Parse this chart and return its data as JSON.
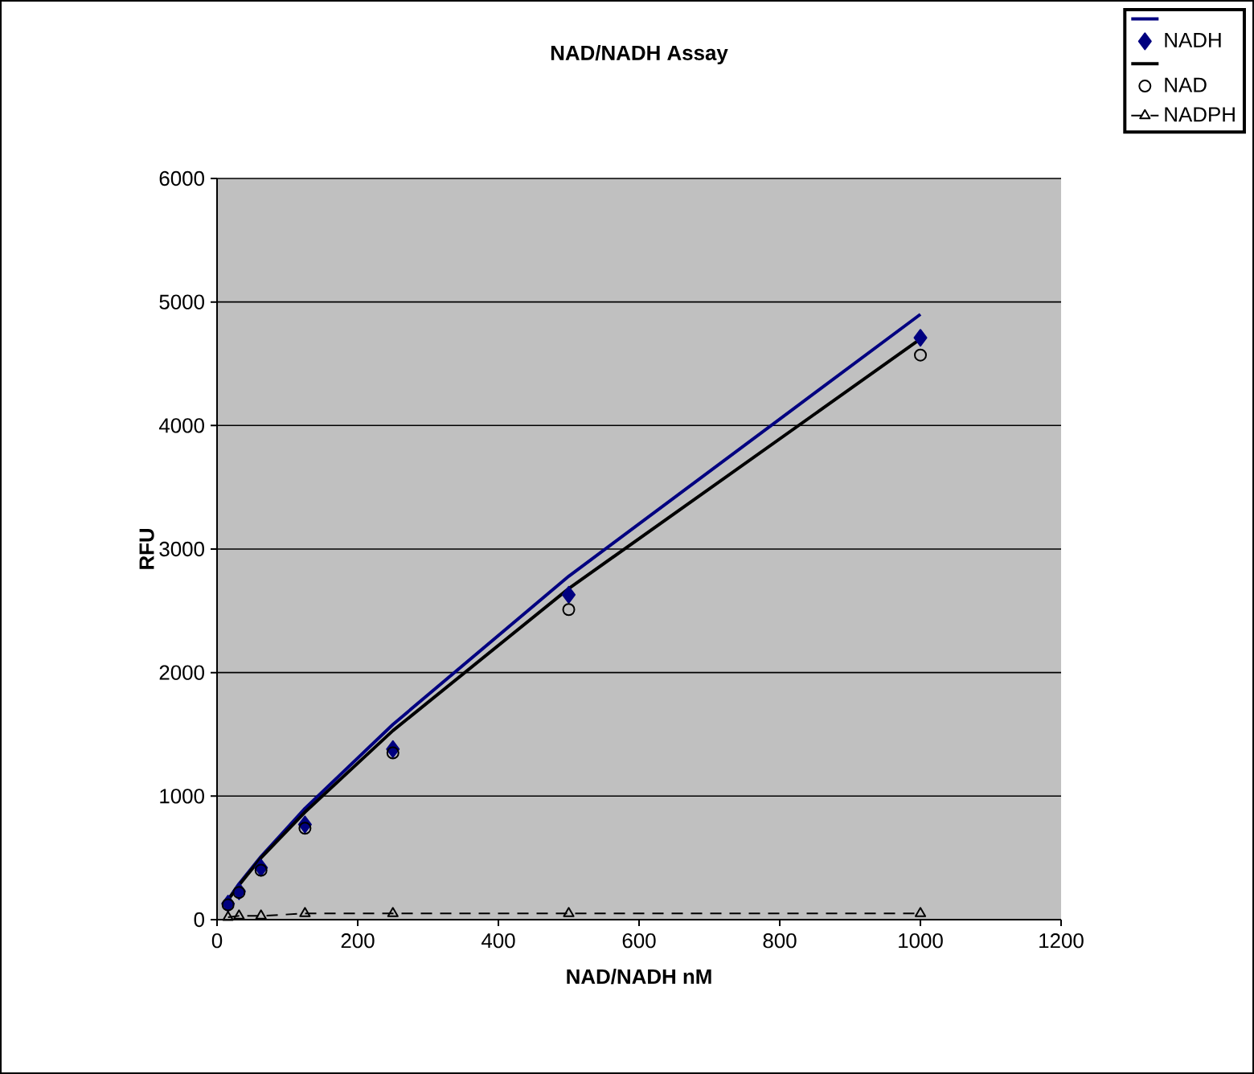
{
  "chart_data": {
    "type": "line",
    "title": "NAD/NADH Assay",
    "xlabel": "NAD/NADH nM",
    "ylabel": "RFU",
    "xlim": [
      0,
      1200
    ],
    "xticks": [
      0,
      200,
      400,
      600,
      800,
      1000,
      1200
    ],
    "ylim": [
      0,
      6000
    ],
    "yticks": [
      0,
      1000,
      2000,
      3000,
      4000,
      5000,
      6000
    ],
    "grid": "y",
    "legend": "top right",
    "series": [
      {
        "color": "#000080",
        "marker": "none",
        "line_style": "solid",
        "x": [
          15.625,
          31.25,
          62.5,
          125,
          250,
          500,
          1000
        ],
        "values": [
          160,
          290,
          510,
          900,
          1580,
          2780,
          4900
        ]
      },
      {
        "type": "scatter",
        "name": "NADH",
        "color": "#000080",
        "marker": "diamond",
        "x": [
          15.625,
          31.25,
          62.5,
          125,
          250,
          500,
          1000
        ],
        "values": [
          130,
          230,
          420,
          770,
          1380,
          2630,
          4710
        ]
      },
      {
        "color": "#000000",
        "marker": "none",
        "line_style": "solid",
        "x": [
          15.625,
          31.25,
          62.5,
          125,
          250,
          500,
          1000
        ],
        "values": [
          160,
          280,
          500,
          870,
          1530,
          2680,
          4700
        ]
      },
      {
        "type": "scatter",
        "name": "NAD",
        "color": "#000000",
        "marker": "circle",
        "x": [
          15.625,
          31.25,
          62.5,
          125,
          250,
          500,
          1000
        ],
        "values": [
          120,
          220,
          400,
          740,
          1350,
          2510,
          4570
        ]
      },
      {
        "name": "NADPH",
        "color": "#000000",
        "marker": "triangle",
        "line_style": "dashed",
        "x": [
          15.625,
          31.25,
          62.5,
          125,
          250,
          500,
          1000
        ],
        "values": [
          20,
          30,
          30,
          50,
          50,
          50,
          50
        ]
      }
    ]
  }
}
